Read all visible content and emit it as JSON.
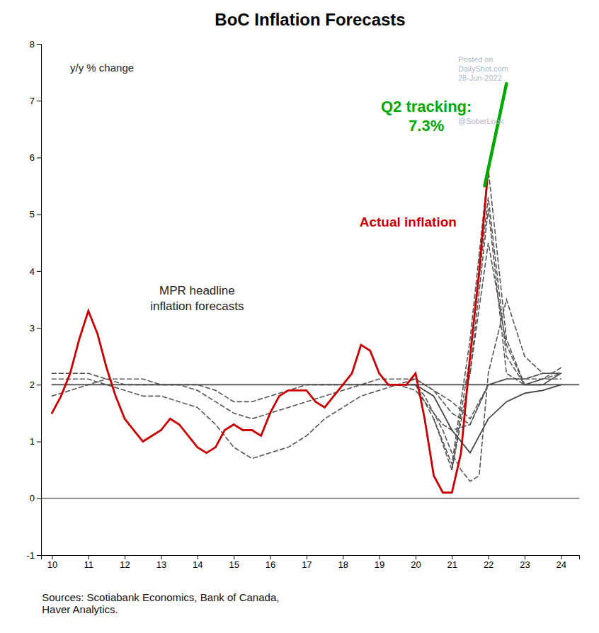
{
  "chart_data": {
    "type": "line",
    "title": "BoC Inflation Forecasts",
    "ylabel": "y/y % change",
    "xlim": [
      9.7,
      24.5
    ],
    "ylim": [
      -1,
      8
    ],
    "xticks": [
      10,
      11,
      12,
      13,
      14,
      15,
      16,
      17,
      18,
      19,
      20,
      21,
      22,
      23,
      24
    ],
    "yticks": [
      -1,
      0,
      1,
      2,
      3,
      4,
      5,
      6,
      7,
      8
    ],
    "grid": false,
    "hlines": [
      0
    ],
    "series": [
      {
        "color": "#555555",
        "line_style": "dashed",
        "x": [
          10.0,
          10.5,
          11.0,
          11.5,
          12.0,
          12.5,
          13.0,
          13.5,
          14.0,
          14.5,
          15.0,
          15.5,
          16.0,
          16.5,
          17.0,
          17.5,
          18.0,
          18.5,
          19.0,
          19.5,
          20.0,
          20.25,
          20.5,
          20.75,
          21.0,
          21.5,
          22.0,
          22.5,
          23.0,
          23.5,
          24.0
        ],
        "values": [
          2.2,
          2.2,
          2.2,
          2.1,
          2.0,
          2.0,
          2.0,
          2.0,
          2.0,
          1.9,
          1.7,
          1.7,
          1.8,
          1.9,
          2.0,
          2.0,
          2.0,
          2.0,
          2.1,
          2.1,
          2.1,
          2.0,
          1.9,
          1.8,
          1.7,
          1.4,
          2.0,
          2.1,
          2.1,
          2.1,
          2.1
        ]
      },
      {
        "color": "#555555",
        "line_style": "dashed",
        "x": [
          10.0,
          10.5,
          11.0,
          11.5,
          12.0,
          12.5,
          13.0,
          13.5,
          14.0,
          14.5,
          15.0,
          15.5,
          16.0,
          16.5,
          17.0,
          17.5,
          18.0,
          18.5,
          19.0,
          19.5,
          20.0,
          20.25,
          20.5,
          20.75,
          21.0,
          21.5,
          22.0,
          22.5,
          23.0,
          23.5
        ],
        "values": [
          2.1,
          2.1,
          2.1,
          2.0,
          1.9,
          1.8,
          1.8,
          1.7,
          1.6,
          1.3,
          0.9,
          0.7,
          0.8,
          0.9,
          1.1,
          1.4,
          1.6,
          1.8,
          1.9,
          2.0,
          2.1,
          2.0,
          1.9,
          1.7,
          1.5,
          1.3,
          2.0,
          2.1,
          2.1,
          2.2
        ]
      },
      {
        "color": "#555555",
        "line_style": "dashed",
        "x": [
          10.0,
          10.5,
          11.0,
          11.5,
          12.0,
          12.5,
          13.0,
          13.5,
          14.0,
          14.5,
          15.0,
          15.5,
          16.0,
          16.5,
          17.0,
          17.5,
          18.0,
          18.5,
          19.0,
          19.5,
          20.0,
          20.25,
          20.5,
          20.75,
          21.0,
          21.5,
          22.0,
          22.5,
          23.0,
          23.5,
          24.0
        ],
        "values": [
          1.8,
          1.9,
          2.0,
          2.1,
          2.1,
          2.1,
          2.0,
          2.0,
          1.9,
          1.7,
          1.5,
          1.4,
          1.5,
          1.6,
          1.7,
          1.8,
          1.9,
          2.0,
          2.0,
          2.0,
          1.9,
          1.7,
          1.5,
          1.3,
          1.2,
          1.3,
          2.0,
          2.1,
          2.1,
          2.2,
          2.2
        ]
      },
      {
        "color": "#555555",
        "line_style": "dashed",
        "x": [
          19.5,
          20.0,
          20.25,
          20.5,
          20.75,
          21.0,
          21.25,
          21.5,
          21.75,
          22.0,
          22.5,
          23.0,
          23.5,
          24.0
        ],
        "values": [
          2.0,
          2.0,
          1.8,
          1.5,
          1.2,
          0.8,
          0.5,
          0.3,
          0.4,
          2.2,
          3.5,
          2.5,
          2.2,
          2.2
        ]
      },
      {
        "color": "#555555",
        "line_style": "dashed",
        "x": [
          20.0,
          20.5,
          21.0,
          21.5,
          22.0,
          22.5,
          23.0,
          23.5,
          24.0
        ],
        "values": [
          2.0,
          1.4,
          0.6,
          2.8,
          5.8,
          2.8,
          2.0,
          2.1,
          2.2
        ]
      },
      {
        "color": "#555555",
        "line_style": "dashed",
        "x": [
          20.5,
          21.0,
          21.5,
          22.0,
          22.5,
          23.0,
          23.5,
          24.0
        ],
        "values": [
          1.4,
          0.5,
          2.5,
          5.3,
          2.5,
          2.0,
          2.1,
          2.3
        ]
      },
      {
        "color": "#555555",
        "line_style": "dashed",
        "x": [
          21.0,
          21.5,
          22.0,
          22.5,
          23.0,
          23.5,
          24.0
        ],
        "values": [
          0.5,
          2.2,
          4.5,
          2.7,
          2.0,
          2.0,
          2.2
        ]
      },
      {
        "color": "#555555",
        "line_style": "dashed",
        "x": [
          21.5,
          22.0,
          22.5,
          23.0,
          23.5,
          24.0
        ],
        "values": [
          2.2,
          5.1,
          2.2,
          2.0,
          2.0,
          2.2
        ]
      },
      {
        "color": "#444444",
        "line_style": "solid",
        "x": [
          19.5,
          20.0,
          20.5,
          21.0,
          21.5,
          22.0,
          22.5,
          23.0,
          23.5,
          24.0
        ],
        "values": [
          2.0,
          2.0,
          1.8,
          1.2,
          0.8,
          1.4,
          1.7,
          1.85,
          1.9,
          2.0
        ]
      },
      {
        "color": "#444444",
        "line_style": "solid",
        "x": [
          10.0,
          24.5
        ],
        "values": [
          2.0,
          2.0
        ]
      },
      {
        "color": "#cc0000",
        "line_style": "solid",
        "x": [
          10.0,
          10.25,
          10.5,
          10.75,
          11.0,
          11.25,
          11.5,
          11.75,
          12.0,
          12.25,
          12.5,
          12.75,
          13.0,
          13.25,
          13.5,
          13.75,
          14.0,
          14.25,
          14.5,
          14.75,
          15.0,
          15.25,
          15.5,
          15.75,
          16.0,
          16.25,
          16.5,
          16.75,
          17.0,
          17.25,
          17.5,
          17.75,
          18.0,
          18.25,
          18.5,
          18.75,
          19.0,
          19.25,
          19.5,
          19.75,
          20.0,
          20.25,
          20.5,
          20.75,
          21.0,
          21.25,
          21.5,
          21.75,
          22.0
        ],
        "values": [
          1.5,
          1.8,
          2.2,
          2.8,
          3.3,
          2.9,
          2.3,
          1.8,
          1.4,
          1.2,
          1.0,
          1.1,
          1.2,
          1.4,
          1.3,
          1.1,
          0.9,
          0.8,
          0.9,
          1.2,
          1.3,
          1.2,
          1.2,
          1.1,
          1.5,
          1.8,
          1.9,
          1.9,
          1.9,
          1.7,
          1.6,
          1.8,
          2.0,
          2.2,
          2.7,
          2.6,
          2.2,
          2.0,
          2.0,
          2.0,
          2.2,
          1.4,
          0.4,
          0.1,
          0.1,
          0.8,
          2.5,
          4.0,
          5.8
        ]
      },
      {
        "color": "#00aa00",
        "line_style": "solid",
        "x": [
          21.9,
          22.5
        ],
        "values": [
          5.5,
          7.3
        ]
      }
    ],
    "annotations": [
      {
        "text": "Q2 tracking:\n7.3%",
        "color": "#00aa00"
      },
      {
        "text": "Actual inflation",
        "color": "#cc0000"
      },
      {
        "text": "MPR headline\ninflation forecasts",
        "color": "#222222"
      },
      {
        "text": "Posted on\nDailyShot.com\n28-Jun-2022",
        "color": "#b0b8cc"
      },
      {
        "text": "@SoberLook",
        "color": "#b0b8cc"
      }
    ],
    "source": "Sources: Scotiabank Economics, Bank of Canada,\nHaver Analytics."
  }
}
